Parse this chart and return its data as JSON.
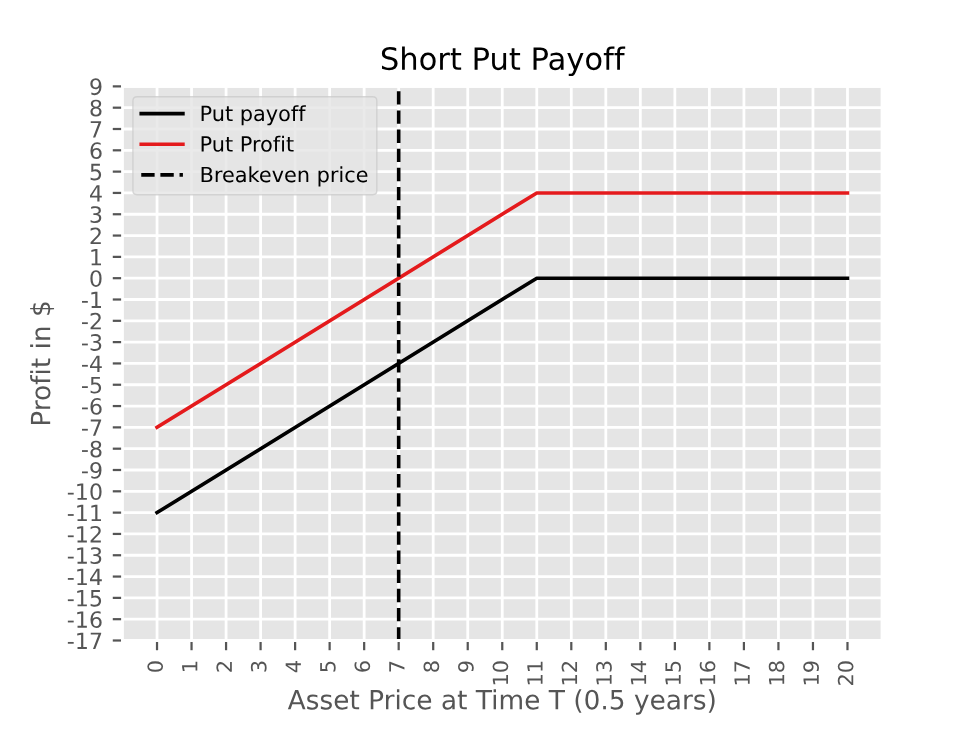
{
  "chart_data": {
    "type": "line",
    "title": "Short Put Payoff",
    "xlabel": "Asset Price at Time T (0.5 years)",
    "ylabel": "Profit in $",
    "series": [
      {
        "name": "Put payoff",
        "color": "#000000",
        "x": [
          0,
          11,
          20
        ],
        "values": [
          -11,
          0,
          0
        ]
      },
      {
        "name": "Put Profit",
        "color": "#e41a1c",
        "x": [
          0,
          11,
          20
        ],
        "values": [
          -7,
          4,
          4
        ]
      }
    ],
    "ref_lines": [
      {
        "axis": "x",
        "value": 7,
        "label": "Breakeven price",
        "color": "#000000",
        "line_style": "dashed"
      }
    ],
    "xlim": [
      -1,
      21
    ],
    "xticks": [
      0,
      1,
      2,
      3,
      4,
      5,
      6,
      7,
      8,
      9,
      10,
      11,
      12,
      13,
      14,
      15,
      16,
      17,
      18,
      19,
      20
    ],
    "ylim": [
      -17,
      9
    ],
    "yticks": [
      -17,
      -16,
      -15,
      -14,
      -13,
      -12,
      -11,
      -10,
      -9,
      -8,
      -7,
      -6,
      -5,
      -4,
      -3,
      -2,
      -1,
      0,
      1,
      2,
      3,
      4,
      5,
      6,
      7,
      8,
      9
    ],
    "grid": true,
    "legend": "top left",
    "marker": "none",
    "line_style": "solid"
  }
}
